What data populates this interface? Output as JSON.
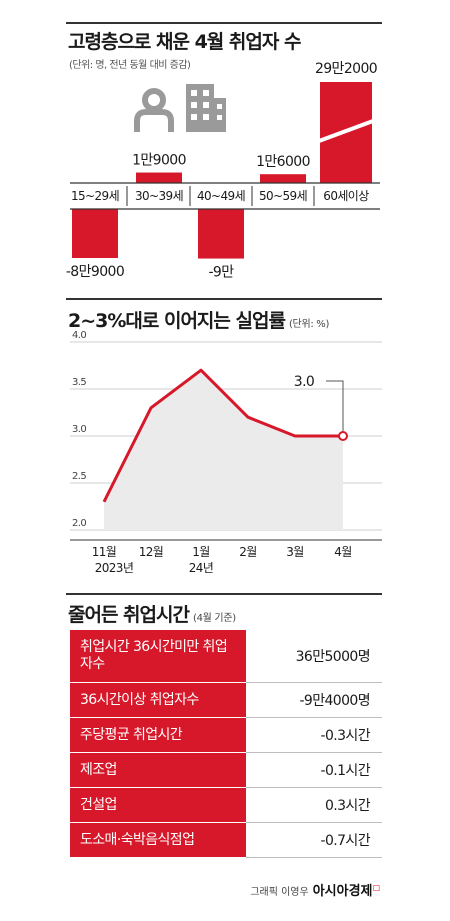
{
  "chart1": {
    "title": "고령층으로 채운 4월 취업자 수",
    "unit": "(단위: 명, 전년 동월 대비 증감)"
  },
  "chart2": {
    "title": "2~3%대로 이어지는 실업률",
    "unit": "(단위: %)"
  },
  "chart_data": [
    {
      "type": "bar",
      "title": "고령층으로 채운 4월 취업자 수",
      "categories": [
        "15~29세",
        "30~39세",
        "40~49세",
        "50~59세",
        "60세이상"
      ],
      "values": [
        -89000,
        19000,
        -90000,
        16000,
        292000
      ],
      "value_labels": [
        "-8만9000",
        "1만9000",
        "-9만",
        "1만6000",
        "29만2000"
      ],
      "axis_break": true,
      "bar_color": "#d7182a",
      "icons": [
        "person-icon",
        "building-icon"
      ]
    },
    {
      "type": "area",
      "title": "2~3%대로 이어지는 실업률",
      "x": [
        "11월",
        "12월",
        "1월",
        "2월",
        "3월",
        "4월"
      ],
      "year_labels": [
        "2023년",
        "",
        "24년",
        "",
        "",
        ""
      ],
      "values": [
        2.3,
        3.3,
        3.7,
        3.2,
        3.0,
        3.0
      ],
      "ylim": [
        2.0,
        4.0
      ],
      "yticks": [
        "2.0",
        "2.5",
        "3.0",
        "3.5",
        "4.0"
      ],
      "callout": "3.0",
      "grid": true,
      "line_color": "#d7182a",
      "fill_color": "#ebebeb"
    }
  ],
  "table": {
    "title": "줄어든 취업시간",
    "note": "(4월 기준)",
    "rows": [
      {
        "label": "취업시간 36시간미만 취업자수",
        "value": "36만5000명"
      },
      {
        "label": "36시간이상 취업자수",
        "value": "-9만4000명"
      },
      {
        "label": "주당평균 취업시간",
        "value": "-0.3시간"
      },
      {
        "label": "제조업",
        "value": "-0.1시간"
      },
      {
        "label": "건설업",
        "value": "0.3시간"
      },
      {
        "label": "도소매·숙박음식점업",
        "value": "-0.7시간"
      }
    ]
  },
  "credit": {
    "text": "그래픽 이영우",
    "brand": "아시아경제"
  }
}
